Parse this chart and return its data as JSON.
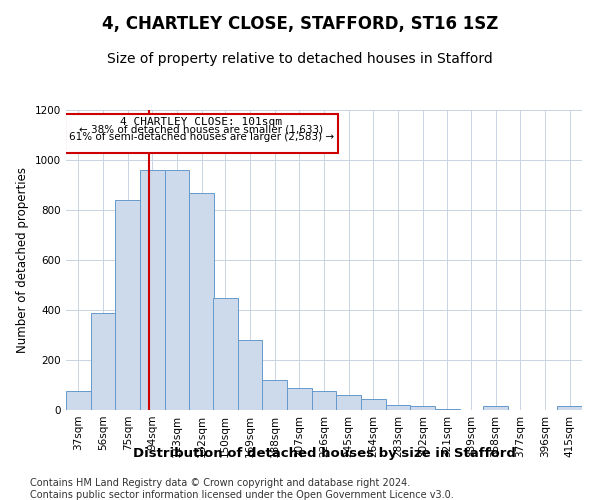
{
  "title": "4, CHARTLEY CLOSE, STAFFORD, ST16 1SZ",
  "subtitle": "Size of property relative to detached houses in Stafford",
  "xlabel": "Distribution of detached houses by size in Stafford",
  "ylabel": "Number of detached properties",
  "bar_color": "#cddaeb",
  "bar_edge_color": "#6699cc",
  "grid_color": "#c8d4e3",
  "red_line_color": "#cc0000",
  "annotation_box_color": "#cc0000",
  "footer_line1": "Contains HM Land Registry data © Crown copyright and database right 2024.",
  "footer_line2": "Contains public sector information licensed under the Open Government Licence v3.0.",
  "ann_line1": "4 CHARTLEY CLOSE: 101sqm",
  "ann_line2": "← 38% of detached houses are smaller (1,633)",
  "ann_line3": "61% of semi-detached houses are larger (2,583) →",
  "property_size": 101,
  "categories": [
    "37sqm",
    "56sqm",
    "75sqm",
    "94sqm",
    "113sqm",
    "132sqm",
    "150sqm",
    "169sqm",
    "188sqm",
    "207sqm",
    "226sqm",
    "245sqm",
    "264sqm",
    "283sqm",
    "302sqm",
    "321sqm",
    "339sqm",
    "358sqm",
    "377sqm",
    "396sqm",
    "415sqm"
  ],
  "bin_edges": [
    37,
    56,
    75,
    94,
    113,
    132,
    150,
    169,
    188,
    207,
    226,
    245,
    264,
    283,
    302,
    321,
    339,
    358,
    377,
    396,
    415
  ],
  "bin_width": 19,
  "values": [
    75,
    390,
    840,
    960,
    960,
    870,
    450,
    280,
    120,
    90,
    75,
    60,
    45,
    20,
    15,
    5,
    0,
    15,
    0,
    0,
    15
  ],
  "ylim": [
    0,
    1200
  ],
  "yticks": [
    0,
    200,
    400,
    600,
    800,
    1000,
    1200
  ],
  "background_color": "#ffffff",
  "title_fontsize": 12,
  "subtitle_fontsize": 10,
  "xlabel_fontsize": 9.5,
  "ylabel_fontsize": 8.5,
  "tick_fontsize": 7.5,
  "footer_fontsize": 7,
  "ann_fontsize": 8
}
